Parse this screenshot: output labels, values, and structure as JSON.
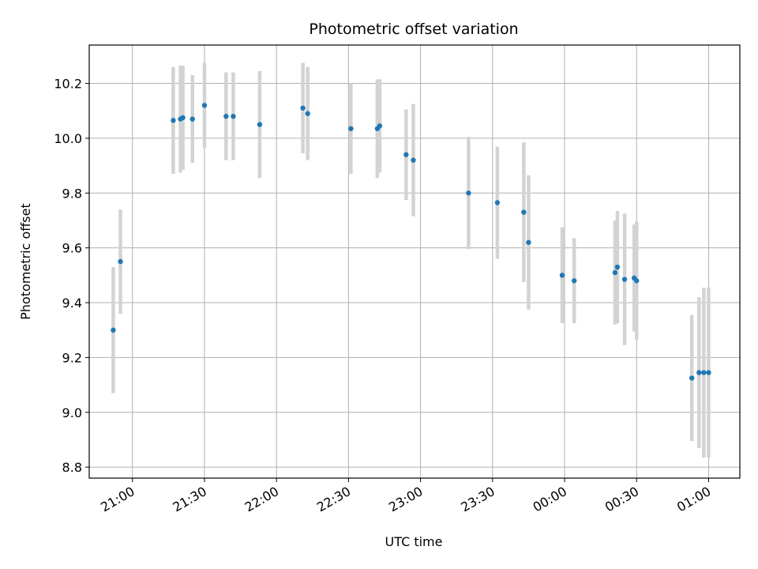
{
  "chart_data": {
    "type": "scatter",
    "title": "Photometric offset variation",
    "xlabel": "UTC time",
    "ylabel": "Photometric offset",
    "grid": true,
    "legend": "none",
    "x_ticks": [
      "21:00",
      "21:30",
      "22:00",
      "22:30",
      "23:00",
      "23:30",
      "00:00",
      "00:30",
      "01:00"
    ],
    "x_range": [
      "20:42",
      "01:13"
    ],
    "y_ticks": [
      "8.8",
      "9.0",
      "9.2",
      "9.4",
      "9.6",
      "9.8",
      "10.0",
      "10.2"
    ],
    "ylim": [
      8.76,
      10.34
    ],
    "colors": {
      "point": "#1f77b4",
      "errorbar": "#d3d3d3",
      "grid": "#b0b0b0"
    },
    "points": [
      {
        "x": "20:52",
        "y": 9.3,
        "err": 0.23
      },
      {
        "x": "20:55",
        "y": 9.55,
        "err": 0.19
      },
      {
        "x": "21:17",
        "y": 10.065,
        "err": 0.195
      },
      {
        "x": "21:20",
        "y": 10.07,
        "err": 0.195
      },
      {
        "x": "21:21",
        "y": 10.075,
        "err": 0.19
      },
      {
        "x": "21:25",
        "y": 10.07,
        "err": 0.16
      },
      {
        "x": "21:30",
        "y": 10.12,
        "err": 0.155
      },
      {
        "x": "21:39",
        "y": 10.08,
        "err": 0.16
      },
      {
        "x": "21:42",
        "y": 10.08,
        "err": 0.16
      },
      {
        "x": "21:53",
        "y": 10.05,
        "err": 0.195
      },
      {
        "x": "22:11",
        "y": 10.11,
        "err": 0.165
      },
      {
        "x": "22:13",
        "y": 10.09,
        "err": 0.17
      },
      {
        "x": "22:31",
        "y": 10.035,
        "err": 0.165
      },
      {
        "x": "22:42",
        "y": 10.035,
        "err": 0.18
      },
      {
        "x": "22:43",
        "y": 10.045,
        "err": 0.17
      },
      {
        "x": "22:54",
        "y": 9.94,
        "err": 0.165
      },
      {
        "x": "22:57",
        "y": 9.92,
        "err": 0.205
      },
      {
        "x": "23:20",
        "y": 9.8,
        "err": 0.205
      },
      {
        "x": "23:32",
        "y": 9.765,
        "err": 0.205
      },
      {
        "x": "23:43",
        "y": 9.73,
        "err": 0.255
      },
      {
        "x": "23:45",
        "y": 9.62,
        "err": 0.245
      },
      {
        "x": "23:59",
        "y": 9.5,
        "err": 0.175
      },
      {
        "x": "00:04",
        "y": 9.48,
        "err": 0.155
      },
      {
        "x": "00:21",
        "y": 9.51,
        "err": 0.19
      },
      {
        "x": "00:22",
        "y": 9.53,
        "err": 0.205
      },
      {
        "x": "00:25",
        "y": 9.485,
        "err": 0.24
      },
      {
        "x": "00:29",
        "y": 9.49,
        "err": 0.195
      },
      {
        "x": "00:30",
        "y": 9.48,
        "err": 0.215
      },
      {
        "x": "00:53",
        "y": 9.125,
        "err": 0.23
      },
      {
        "x": "00:56",
        "y": 9.145,
        "err": 0.275
      },
      {
        "x": "00:58",
        "y": 9.145,
        "err": 0.31
      },
      {
        "x": "01:00",
        "y": 9.145,
        "err": 0.31
      }
    ]
  }
}
